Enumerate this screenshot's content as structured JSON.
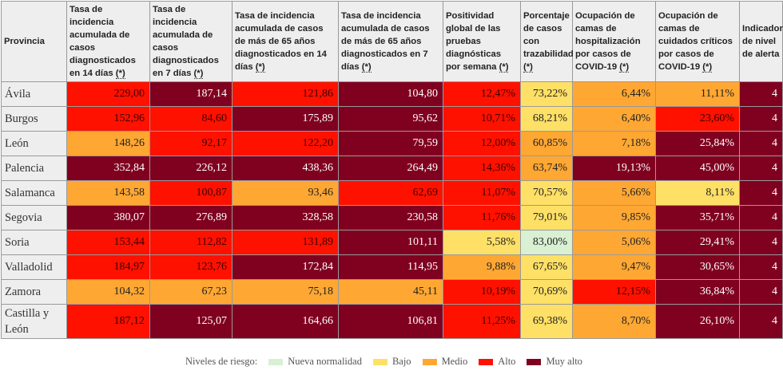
{
  "colors": {
    "nueva_normalidad": "#d9f0d3",
    "bajo": "#ffe066",
    "medio": "#ffa733",
    "alto": "#ff1100",
    "muy_alto": "#800020"
  },
  "table": {
    "headers": [
      {
        "label": "Provincia",
        "note": ""
      },
      {
        "label": "Tasa de incidencia acumulada de casos diagnosticados en 14 días",
        "note": "(*)"
      },
      {
        "label": "Tasa de incidencia acumulada de casos diagnosticados en 7 días",
        "note": "(*)"
      },
      {
        "label": "Tasa de incidencia acumulada de casos de más de 65 años diagnosticados en 14 días",
        "note": "(*)"
      },
      {
        "label": "Tasa de incidencia acumulada de casos de más de 65 años diagnosticados en 7 días",
        "note": "(*)"
      },
      {
        "label": "Positividad global de las pruebas diagnósticas por semana",
        "note": "(*)"
      },
      {
        "label": "Porcentaje de casos con trazabilidad",
        "note": "(*)"
      },
      {
        "label": "Ocupación de camas de hospitalización por casos de COVID-19",
        "note": "(*)"
      },
      {
        "label": "Ocupación de camas de cuidados críticos por casos de COVID-19",
        "note": "(*)"
      },
      {
        "label": "Indicador de nivel de alerta",
        "note": ""
      }
    ],
    "rows": [
      {
        "provincia": "Ávila",
        "cells": [
          {
            "value": "229,00",
            "level": "alto"
          },
          {
            "value": "187,14",
            "level": "muy"
          },
          {
            "value": "121,86",
            "level": "alto"
          },
          {
            "value": "104,80",
            "level": "muy"
          },
          {
            "value": "12,47%",
            "level": "alto"
          },
          {
            "value": "73,22%",
            "level": "bajo"
          },
          {
            "value": "6,44%",
            "level": "medio"
          },
          {
            "value": "11,11%",
            "level": "medio"
          },
          {
            "value": "4",
            "level": "muy"
          }
        ]
      },
      {
        "provincia": "Burgos",
        "cells": [
          {
            "value": "152,96",
            "level": "alto"
          },
          {
            "value": "84,60",
            "level": "alto"
          },
          {
            "value": "175,89",
            "level": "muy"
          },
          {
            "value": "95,62",
            "level": "muy"
          },
          {
            "value": "10,71%",
            "level": "alto"
          },
          {
            "value": "68,21%",
            "level": "bajo"
          },
          {
            "value": "6,40%",
            "level": "medio"
          },
          {
            "value": "23,60%",
            "level": "alto"
          },
          {
            "value": "4",
            "level": "muy"
          }
        ]
      },
      {
        "provincia": "León",
        "cells": [
          {
            "value": "148,26",
            "level": "medio"
          },
          {
            "value": "92,17",
            "level": "alto"
          },
          {
            "value": "122,20",
            "level": "alto"
          },
          {
            "value": "79,59",
            "level": "muy"
          },
          {
            "value": "12,00%",
            "level": "alto"
          },
          {
            "value": "60,85%",
            "level": "medio"
          },
          {
            "value": "7,18%",
            "level": "medio"
          },
          {
            "value": "25,84%",
            "level": "muy"
          },
          {
            "value": "4",
            "level": "muy"
          }
        ]
      },
      {
        "provincia": "Palencia",
        "cells": [
          {
            "value": "352,84",
            "level": "muy"
          },
          {
            "value": "226,12",
            "level": "muy"
          },
          {
            "value": "438,36",
            "level": "muy"
          },
          {
            "value": "264,49",
            "level": "muy"
          },
          {
            "value": "14,36%",
            "level": "alto"
          },
          {
            "value": "63,74%",
            "level": "medio"
          },
          {
            "value": "19,13%",
            "level": "muy"
          },
          {
            "value": "45,00%",
            "level": "muy"
          },
          {
            "value": "4",
            "level": "muy"
          }
        ]
      },
      {
        "provincia": "Salamanca",
        "cells": [
          {
            "value": "143,58",
            "level": "medio"
          },
          {
            "value": "100,87",
            "level": "alto"
          },
          {
            "value": "93,46",
            "level": "medio"
          },
          {
            "value": "62,69",
            "level": "alto"
          },
          {
            "value": "11,07%",
            "level": "alto"
          },
          {
            "value": "70,57%",
            "level": "bajo"
          },
          {
            "value": "5,66%",
            "level": "medio"
          },
          {
            "value": "8,11%",
            "level": "bajo"
          },
          {
            "value": "4",
            "level": "muy"
          }
        ]
      },
      {
        "provincia": "Segovia",
        "cells": [
          {
            "value": "380,07",
            "level": "muy"
          },
          {
            "value": "276,89",
            "level": "muy"
          },
          {
            "value": "328,58",
            "level": "muy"
          },
          {
            "value": "230,58",
            "level": "muy"
          },
          {
            "value": "11,76%",
            "level": "alto"
          },
          {
            "value": "79,01%",
            "level": "bajo"
          },
          {
            "value": "9,85%",
            "level": "medio"
          },
          {
            "value": "35,71%",
            "level": "muy"
          },
          {
            "value": "4",
            "level": "muy"
          }
        ]
      },
      {
        "provincia": "Soria",
        "cells": [
          {
            "value": "153,44",
            "level": "alto"
          },
          {
            "value": "112,82",
            "level": "alto"
          },
          {
            "value": "131,89",
            "level": "alto"
          },
          {
            "value": "101,11",
            "level": "muy"
          },
          {
            "value": "5,58%",
            "level": "bajo"
          },
          {
            "value": "83,00%",
            "level": "nn"
          },
          {
            "value": "5,06%",
            "level": "medio"
          },
          {
            "value": "29,41%",
            "level": "muy"
          },
          {
            "value": "4",
            "level": "muy"
          }
        ]
      },
      {
        "provincia": "Valladolid",
        "cells": [
          {
            "value": "184,97",
            "level": "alto"
          },
          {
            "value": "123,76",
            "level": "alto"
          },
          {
            "value": "172,84",
            "level": "muy"
          },
          {
            "value": "114,95",
            "level": "muy"
          },
          {
            "value": "9,88%",
            "level": "medio"
          },
          {
            "value": "67,65%",
            "level": "bajo"
          },
          {
            "value": "9,47%",
            "level": "medio"
          },
          {
            "value": "30,65%",
            "level": "muy"
          },
          {
            "value": "4",
            "level": "muy"
          }
        ]
      },
      {
        "provincia": "Zamora",
        "cells": [
          {
            "value": "104,32",
            "level": "medio"
          },
          {
            "value": "67,23",
            "level": "medio"
          },
          {
            "value": "75,18",
            "level": "medio"
          },
          {
            "value": "45,11",
            "level": "medio"
          },
          {
            "value": "10,19%",
            "level": "alto"
          },
          {
            "value": "70,69%",
            "level": "bajo"
          },
          {
            "value": "12,15%",
            "level": "alto"
          },
          {
            "value": "36,84%",
            "level": "muy"
          },
          {
            "value": "4",
            "level": "muy"
          }
        ]
      },
      {
        "provincia": "Castilla y León",
        "cells": [
          {
            "value": "187,12",
            "level": "alto"
          },
          {
            "value": "125,07",
            "level": "muy"
          },
          {
            "value": "164,66",
            "level": "muy"
          },
          {
            "value": "106,81",
            "level": "muy"
          },
          {
            "value": "11,25%",
            "level": "alto"
          },
          {
            "value": "69,38%",
            "level": "bajo"
          },
          {
            "value": "8,70%",
            "level": "medio"
          },
          {
            "value": "26,10%",
            "level": "muy"
          },
          {
            "value": "4",
            "level": "muy"
          }
        ]
      }
    ]
  },
  "legend": {
    "title": "Niveles de riesgo:",
    "items": [
      {
        "label": "Nueva normalidad",
        "level": "nn"
      },
      {
        "label": "Bajo",
        "level": "bajo"
      },
      {
        "label": "Medio",
        "level": "medio"
      },
      {
        "label": "Alto",
        "level": "alto"
      },
      {
        "label": "Muy alto",
        "level": "muy"
      }
    ]
  }
}
